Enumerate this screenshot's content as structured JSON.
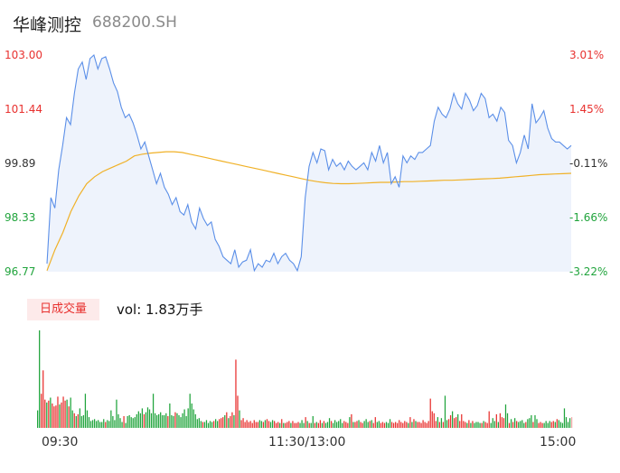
{
  "header": {
    "name": "华峰测控",
    "code": "688200.SH"
  },
  "tab_label": "日成交量",
  "volume_label": "vol: 1.83万手",
  "colors": {
    "price_line": "#5b8fe8",
    "avg_line": "#f0b127",
    "up": "#e8312f",
    "down": "#20a43c",
    "area": "#eef3fc"
  },
  "chart_data": [
    {
      "type": "line",
      "title": "",
      "ylim": [
        96.77,
        103.0
      ],
      "y_ticks": [
        "103.00",
        "101.44",
        "99.89",
        "98.33",
        "96.77"
      ],
      "y2_ticks": [
        "3.01%",
        "1.45%",
        "-0.11%",
        "-1.66%",
        "-3.22%"
      ],
      "x_ticks": [
        "09:30",
        "11:30/13:00",
        "15:00"
      ],
      "series": [
        {
          "key": "price",
          "values": [
            97.0,
            98.9,
            98.6,
            99.7,
            100.4,
            101.2,
            101.0,
            101.9,
            102.6,
            102.8,
            102.3,
            102.9,
            103.0,
            102.6,
            102.9,
            102.95,
            102.6,
            102.2,
            101.95,
            101.5,
            101.2,
            101.3,
            101.05,
            100.7,
            100.3,
            100.5,
            100.1,
            99.7,
            99.3,
            99.6,
            99.2,
            99.0,
            98.7,
            98.9,
            98.5,
            98.4,
            98.7,
            98.2,
            98.0,
            98.6,
            98.3,
            98.1,
            98.2,
            97.7,
            97.5,
            97.2,
            97.1,
            97.0,
            97.4,
            96.9,
            97.05,
            97.1,
            97.4,
            96.8,
            97.0,
            96.9,
            97.1,
            97.05,
            97.3,
            97.0,
            97.2,
            97.3,
            97.1,
            97.0,
            96.8,
            97.2,
            98.9,
            99.8,
            100.2,
            99.9,
            100.3,
            100.25,
            99.7,
            100.0,
            99.8,
            99.9,
            99.7,
            99.95,
            99.8,
            99.7,
            99.8,
            99.9,
            99.7,
            100.2,
            99.95,
            100.4,
            99.9,
            100.2,
            99.3,
            99.5,
            99.2,
            100.1,
            99.9,
            100.1,
            100.0,
            100.2,
            100.2,
            100.3,
            100.4,
            101.1,
            101.5,
            101.3,
            101.2,
            101.45,
            101.9,
            101.6,
            101.45,
            101.9,
            101.7,
            101.4,
            101.55,
            101.9,
            101.75,
            101.2,
            101.3,
            101.1,
            101.5,
            101.35,
            100.55,
            100.4,
            99.9,
            100.2,
            100.7,
            100.3,
            101.6,
            101.05,
            101.2,
            101.4,
            100.9,
            100.6,
            100.5,
            100.5,
            100.4,
            100.3,
            100.4
          ]
        },
        {
          "key": "avg",
          "values": [
            96.8,
            97.4,
            97.9,
            98.5,
            98.95,
            99.3,
            99.5,
            99.65,
            99.75,
            99.85,
            99.95,
            100.1,
            100.15,
            100.18,
            100.2,
            100.22,
            100.22,
            100.2,
            100.15,
            100.1,
            100.05,
            100.0,
            99.95,
            99.9,
            99.85,
            99.8,
            99.75,
            99.7,
            99.65,
            99.6,
            99.55,
            99.5,
            99.45,
            99.4,
            99.36,
            99.33,
            99.31,
            99.3,
            99.3,
            99.31,
            99.32,
            99.33,
            99.34,
            99.34,
            99.35,
            99.36,
            99.36,
            99.37,
            99.38,
            99.39,
            99.4,
            99.4,
            99.41,
            99.42,
            99.43,
            99.44,
            99.45,
            99.46,
            99.48,
            99.5,
            99.52,
            99.54,
            99.56,
            99.57,
            99.58,
            99.59,
            99.6
          ]
        }
      ]
    },
    {
      "type": "bar",
      "title": "",
      "ylim": [
        0,
        1
      ],
      "values": [
        0.18,
        1.0,
        0.35,
        0.59,
        0.29,
        0.26,
        0.28,
        0.31,
        0.25,
        0.22,
        0.23,
        0.32,
        0.24,
        0.26,
        0.32,
        0.28,
        0.29,
        0.22,
        0.31,
        0.18,
        0.15,
        0.12,
        0.14,
        0.2,
        0.12,
        0.13,
        0.35,
        0.18,
        0.11,
        0.07,
        0.08,
        0.09,
        0.07,
        0.08,
        0.06,
        0.06,
        0.09,
        0.06,
        0.08,
        0.07,
        0.18,
        0.12,
        0.08,
        0.29,
        0.14,
        0.1,
        0.06,
        0.12,
        0.05,
        0.12,
        0.13,
        0.11,
        0.1,
        0.11,
        0.14,
        0.17,
        0.15,
        0.2,
        0.14,
        0.16,
        0.21,
        0.19,
        0.15,
        0.35,
        0.15,
        0.13,
        0.14,
        0.16,
        0.13,
        0.13,
        0.15,
        0.12,
        0.25,
        0.13,
        0.12,
        0.16,
        0.15,
        0.13,
        0.11,
        0.15,
        0.19,
        0.12,
        0.2,
        0.35,
        0.25,
        0.19,
        0.14,
        0.09,
        0.1,
        0.07,
        0.06,
        0.06,
        0.08,
        0.05,
        0.07,
        0.06,
        0.07,
        0.09,
        0.07,
        0.09,
        0.1,
        0.11,
        0.13,
        0.16,
        0.1,
        0.12,
        0.16,
        0.13,
        0.7,
        0.33,
        0.18,
        0.08,
        0.1,
        0.06,
        0.08,
        0.06,
        0.07,
        0.05,
        0.08,
        0.06,
        0.06,
        0.08,
        0.07,
        0.06,
        0.08,
        0.09,
        0.07,
        0.06,
        0.08,
        0.07,
        0.05,
        0.06,
        0.05,
        0.09,
        0.05,
        0.05,
        0.06,
        0.07,
        0.05,
        0.07,
        0.05,
        0.05,
        0.06,
        0.05,
        0.08,
        0.05,
        0.11,
        0.07,
        0.05,
        0.05,
        0.12,
        0.05,
        0.06,
        0.05,
        0.08,
        0.05,
        0.07,
        0.05,
        0.06,
        0.1,
        0.07,
        0.05,
        0.08,
        0.06,
        0.07,
        0.09,
        0.05,
        0.07,
        0.06,
        0.05,
        0.11,
        0.14,
        0.06,
        0.06,
        0.07,
        0.08,
        0.06,
        0.05,
        0.07,
        0.09,
        0.06,
        0.07,
        0.08,
        0.05,
        0.11,
        0.06,
        0.07,
        0.05,
        0.06,
        0.05,
        0.06,
        0.05,
        0.09,
        0.06,
        0.05,
        0.06,
        0.05,
        0.08,
        0.06,
        0.05,
        0.07,
        0.06,
        0.05,
        0.11,
        0.06,
        0.09,
        0.07,
        0.06,
        0.06,
        0.05,
        0.08,
        0.06,
        0.05,
        0.07,
        0.3,
        0.17,
        0.15,
        0.07,
        0.11,
        0.06,
        0.1,
        0.06,
        0.33,
        0.08,
        0.09,
        0.13,
        0.17,
        0.1,
        0.11,
        0.14,
        0.07,
        0.14,
        0.07,
        0.06,
        0.05,
        0.08,
        0.05,
        0.07,
        0.05,
        0.06,
        0.06,
        0.05,
        0.05,
        0.07,
        0.06,
        0.05,
        0.17,
        0.05,
        0.1,
        0.07,
        0.14,
        0.06,
        0.15,
        0.11,
        0.1,
        0.24,
        0.15,
        0.05,
        0.09,
        0.06,
        0.1,
        0.07,
        0.06,
        0.07,
        0.08,
        0.05,
        0.06,
        0.09,
        0.1,
        0.13,
        0.06,
        0.13,
        0.09,
        0.05,
        0.06,
        0.05,
        0.05,
        0.07,
        0.05,
        0.07,
        0.06,
        0.07,
        0.06,
        0.09,
        0.08,
        0.06,
        0.05,
        0.2,
        0.11,
        0.06,
        0.1,
        0.11
      ],
      "colors": [
        "d",
        "d",
        "u",
        "u",
        "u",
        "d",
        "u",
        "d",
        "u",
        "u",
        "u",
        "u",
        "d",
        "u",
        "u",
        "u",
        "d",
        "u",
        "d",
        "d",
        "u",
        "d",
        "u",
        "d",
        "d",
        "d",
        "d",
        "d",
        "d",
        "d",
        "d",
        "d",
        "d",
        "d",
        "d",
        "d",
        "d",
        "u",
        "d",
        "d",
        "d",
        "d",
        "d",
        "d",
        "d",
        "d",
        "d",
        "u",
        "d",
        "d",
        "d",
        "d",
        "d",
        "d",
        "d",
        "d",
        "d",
        "d",
        "u",
        "d",
        "d",
        "d",
        "d",
        "d",
        "d",
        "d",
        "d",
        "d",
        "d",
        "d",
        "d",
        "u",
        "d",
        "d",
        "d",
        "u",
        "d",
        "d",
        "d",
        "d",
        "d",
        "d",
        "d",
        "d",
        "d",
        "d",
        "d",
        "d",
        "d",
        "d",
        "u",
        "d",
        "d",
        "d",
        "d",
        "d",
        "u",
        "d",
        "d",
        "u",
        "u",
        "u",
        "d",
        "u",
        "d",
        "u",
        "u",
        "d",
        "u",
        "u",
        "d",
        "u",
        "u",
        "u",
        "u",
        "u",
        "u",
        "u",
        "u",
        "u",
        "u",
        "d",
        "d",
        "u",
        "d",
        "u",
        "u",
        "d",
        "d",
        "u",
        "u",
        "u",
        "d",
        "u",
        "d",
        "u",
        "u",
        "u",
        "d",
        "u",
        "u",
        "u",
        "u",
        "d",
        "d",
        "d",
        "u",
        "d",
        "u",
        "d",
        "d",
        "u",
        "d",
        "u",
        "u",
        "d",
        "u",
        "d",
        "d",
        "d",
        "u",
        "d",
        "d",
        "d",
        "d",
        "d",
        "d",
        "u",
        "u",
        "u",
        "d",
        "u",
        "d",
        "u",
        "u",
        "d",
        "u",
        "u",
        "d",
        "d",
        "d",
        "u",
        "d",
        "u",
        "u",
        "d",
        "d",
        "u",
        "u",
        "u",
        "d",
        "d",
        "d",
        "u",
        "u",
        "u",
        "u",
        "u",
        "u",
        "u",
        "u",
        "u",
        "d",
        "u",
        "d",
        "u",
        "d",
        "u",
        "u",
        "u",
        "u",
        "u",
        "u",
        "u",
        "u",
        "u",
        "u",
        "u",
        "d",
        "u",
        "d",
        "u",
        "d",
        "d",
        "u",
        "u",
        "d",
        "u",
        "u",
        "d",
        "u",
        "u",
        "u",
        "u",
        "d",
        "u",
        "d",
        "u",
        "d",
        "d",
        "d",
        "d",
        "u",
        "d",
        "u",
        "u",
        "u",
        "d",
        "d",
        "d",
        "u",
        "d",
        "u",
        "u",
        "u",
        "d",
        "d",
        "u",
        "d",
        "u",
        "d",
        "u",
        "d",
        "d",
        "d",
        "d",
        "u",
        "d",
        "d",
        "d",
        "u",
        "d",
        "d",
        "u",
        "u",
        "u",
        "d",
        "d",
        "d",
        "d",
        "u",
        "u",
        "d",
        "u"
      ]
    }
  ]
}
